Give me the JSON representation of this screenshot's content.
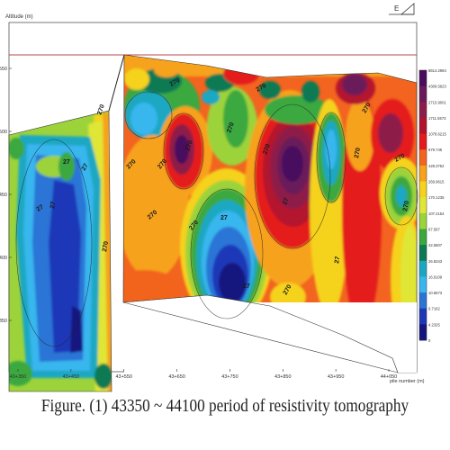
{
  "chart_data": {
    "type": "heatmap",
    "title": "",
    "ylabel": "Altitude (m)",
    "xlabel": "pile number (m)",
    "north_arrow": "E",
    "y_ticks": [
      {
        "label": "550",
        "value": 550
      },
      {
        "label": "500",
        "value": 500
      },
      {
        "label": "450",
        "value": 450
      },
      {
        "label": "400",
        "value": 400
      },
      {
        "label": "350",
        "value": 350
      }
    ],
    "x_ticks": [
      {
        "label": "43+350",
        "value": 43350
      },
      {
        "label": "43+450",
        "value": 43450
      },
      {
        "label": "43+550",
        "value": 43550
      },
      {
        "label": "43+650",
        "value": 43650
      },
      {
        "label": "43+750",
        "value": 43750
      },
      {
        "label": "43+850",
        "value": 43850
      },
      {
        "label": "43+950",
        "value": 43950
      },
      {
        "label": "44+050",
        "value": 44050
      }
    ],
    "xlim": [
      43320,
      44100
    ],
    "ylim": [
      325,
      560
    ],
    "colorbar": {
      "labels": [
        "8614.2984",
        "4309.5923",
        "2715.9001",
        "1711.5573",
        "1078.6215",
        "679.745",
        "428.3752",
        "269.9615",
        "170.1235",
        "107.2154",
        "67.567",
        "42.5807",
        "26.8343",
        "16.9109",
        "10.6573",
        "6.7162",
        "4.2325",
        "0"
      ],
      "colors": [
        "#4a0c5e",
        "#6a1a5a",
        "#8e1c4a",
        "#b3122e",
        "#e41a1c",
        "#f2641f",
        "#f7a21b",
        "#f5d21d",
        "#dfe636",
        "#9cd33b",
        "#3aa83f",
        "#0e7a52",
        "#1aa7c2",
        "#38b6ee",
        "#2a74d6",
        "#1c38b8",
        "#14157f"
      ]
    },
    "contour_labels": [
      "270",
      "27",
      "27",
      "27",
      "270",
      "27",
      "270",
      "270",
      "270",
      "270",
      "27",
      "270",
      "27",
      "270",
      "27",
      "270",
      "270",
      "27",
      "270",
      "270",
      "270",
      "270",
      "270",
      "270"
    ]
  },
  "caption": "Figure. (1) 43350 ~ 44100 period of resistivity tomography"
}
